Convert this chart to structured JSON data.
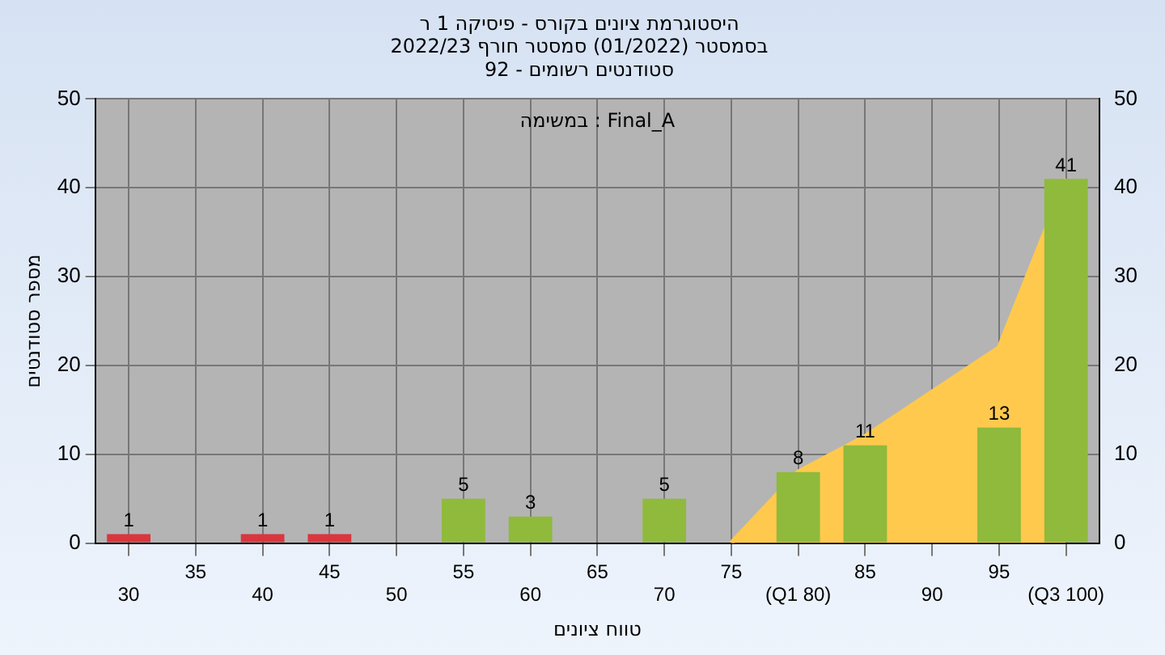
{
  "chart_data": {
    "type": "bar",
    "title": "היסטוגרמת ציונים בקורס - פיסיקה 1 ר",
    "subtitle": "בסמסטר (01/2022) סמסטר חורף 2022/23\nסטודנטים רשומים - 92",
    "xlabel": "טווח ציונים",
    "ylabel": "מספר סטודנטים",
    "annotations": [
      "במשימה : Final_A"
    ],
    "categories": [
      "30",
      "35",
      "40",
      "45",
      "50",
      "55",
      "60",
      "65",
      "70",
      "75",
      "(Q1 80)",
      "85",
      "90",
      "95",
      "(Q3 100)"
    ],
    "series": [
      {
        "type": "area",
        "color": "#ffc94d",
        "values": [
          null,
          null,
          null,
          null,
          null,
          null,
          null,
          null,
          null,
          0,
          8,
          12,
          17,
          22,
          41
        ]
      },
      {
        "colors": [
          "#d9363e",
          "#8fba3c",
          "#d9363e",
          "#d9363e",
          "#8fba3c",
          "#8fba3c",
          "#8fba3c",
          "#8fba3c",
          "#8fba3c",
          "#8fba3c",
          "#8fba3c",
          "#8fba3c",
          "#8fba3c",
          "#8fba3c",
          "#8fba3c"
        ],
        "values": [
          1,
          0,
          1,
          1,
          0,
          5,
          3,
          0,
          5,
          0,
          8,
          11,
          0,
          13,
          41
        ],
        "value_labels": [
          "1",
          null,
          "1",
          "1",
          null,
          "5",
          "3",
          null,
          "5",
          null,
          "8",
          "11",
          null,
          "13",
          "41"
        ]
      }
    ],
    "ylim": [
      0,
      50
    ],
    "yticks": [
      0,
      10,
      20,
      30,
      40,
      50
    ],
    "y2lim": [
      0,
      50
    ],
    "y2ticks": [
      0,
      10,
      20,
      30,
      40,
      50
    ],
    "grid": true,
    "legend": false
  }
}
